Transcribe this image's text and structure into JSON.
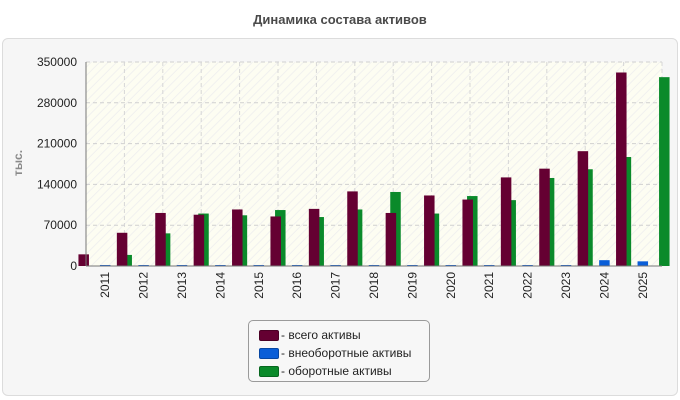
{
  "chart_data": {
    "type": "bar",
    "title": "Динамика состава активов",
    "ylabel": "тыс.",
    "xlabel": "",
    "ylim": [
      0,
      350000
    ],
    "yticks": [
      0,
      70000,
      140000,
      210000,
      280000,
      350000
    ],
    "grid": true,
    "legend_position": "bottom",
    "categories": [
      "2011",
      "2012",
      "2013",
      "2014",
      "2015",
      "2016",
      "2017",
      "2018",
      "2019",
      "2020",
      "2021",
      "2022",
      "2023",
      "2024",
      "2025"
    ],
    "series": [
      {
        "name": "- всего активы",
        "color": "#650032",
        "values": [
          20000,
          57000,
          91000,
          88000,
          97000,
          85000,
          98000,
          128000,
          91000,
          121000,
          114000,
          152000,
          167000,
          197000,
          332000
        ]
      },
      {
        "name": "- внеоборотные активы",
        "color": "#0a5ed8",
        "values": [
          1000,
          1000,
          1500,
          1500,
          1500,
          1500,
          1500,
          1500,
          1500,
          1500,
          1500,
          1500,
          1500,
          10000,
          8000
        ]
      },
      {
        "name": "- оборотные активы",
        "color": "#0a8a2a",
        "values": [
          19000,
          56000,
          90000,
          87000,
          96000,
          84000,
          97000,
          127000,
          90000,
          120000,
          113000,
          151000,
          166000,
          187000,
          324000
        ]
      }
    ]
  }
}
